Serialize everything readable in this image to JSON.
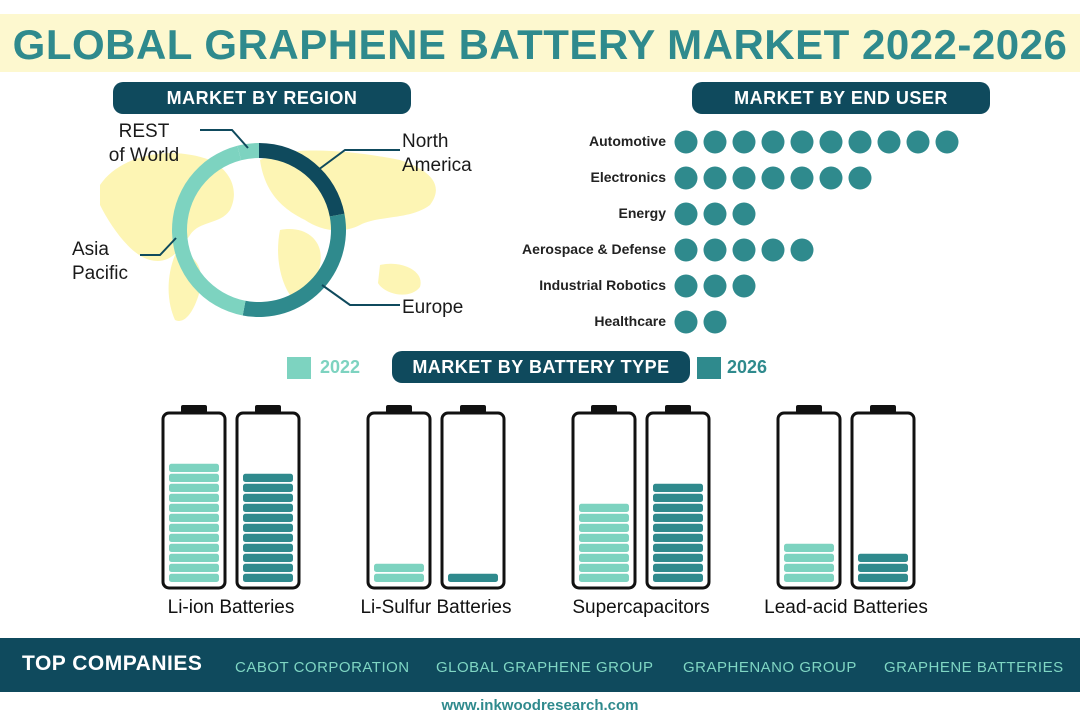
{
  "title": "GLOBAL GRAPHENE BATTERY MARKET 2022-2026",
  "colors": {
    "teal_light": "#7dd3c0",
    "teal_mid": "#2f8a8d",
    "teal_dark": "#0f4a5d",
    "map_yellow": "#fdf5b4"
  },
  "chart_data": [
    {
      "type": "pie",
      "title": "MARKET BY REGION",
      "categories": [
        "North America",
        "Europe",
        "Asia Pacific",
        "REST of World"
      ],
      "values": [
        22,
        31,
        43,
        4
      ],
      "colors": [
        "#0f4a5d",
        "#2f8a8d",
        "#7dd3c0",
        "#7dd3c0"
      ]
    },
    {
      "type": "bar",
      "title": "MARKET BY END USER",
      "categories": [
        "Automotive",
        "Electronics",
        "Energy",
        "Aerospace & Defense",
        "Industrial Robotics",
        "Healthcare"
      ],
      "values": [
        10,
        7,
        3,
        5,
        3,
        2
      ]
    },
    {
      "type": "bar",
      "title": "MARKET BY BATTERY TYPE",
      "categories": [
        "Li-ion Batteries",
        "Li-Sulfur Batteries",
        "Supercapacitors",
        "Lead-acid Batteries"
      ],
      "series": [
        {
          "name": "2022",
          "values": [
            12,
            2,
            8,
            4
          ]
        },
        {
          "name": "2026",
          "values": [
            11,
            1,
            10,
            3
          ]
        }
      ],
      "ylim": [
        0,
        15
      ]
    }
  ],
  "region_labels": {
    "north_america": "North\nAmerica",
    "europe": "Europe",
    "asia_pacific": "Asia\nPacific",
    "rest_of_world": "REST\nof World"
  },
  "legend": {
    "y2022": "2022",
    "y2026": "2026"
  },
  "footer": {
    "title": "TOP COMPANIES",
    "companies": [
      "CABOT CORPORATION",
      "GLOBAL GRAPHENE GROUP",
      "GRAPHENANO GROUP",
      "GRAPHENE BATTERIES"
    ]
  },
  "website": "www.inkwoodresearch.com"
}
